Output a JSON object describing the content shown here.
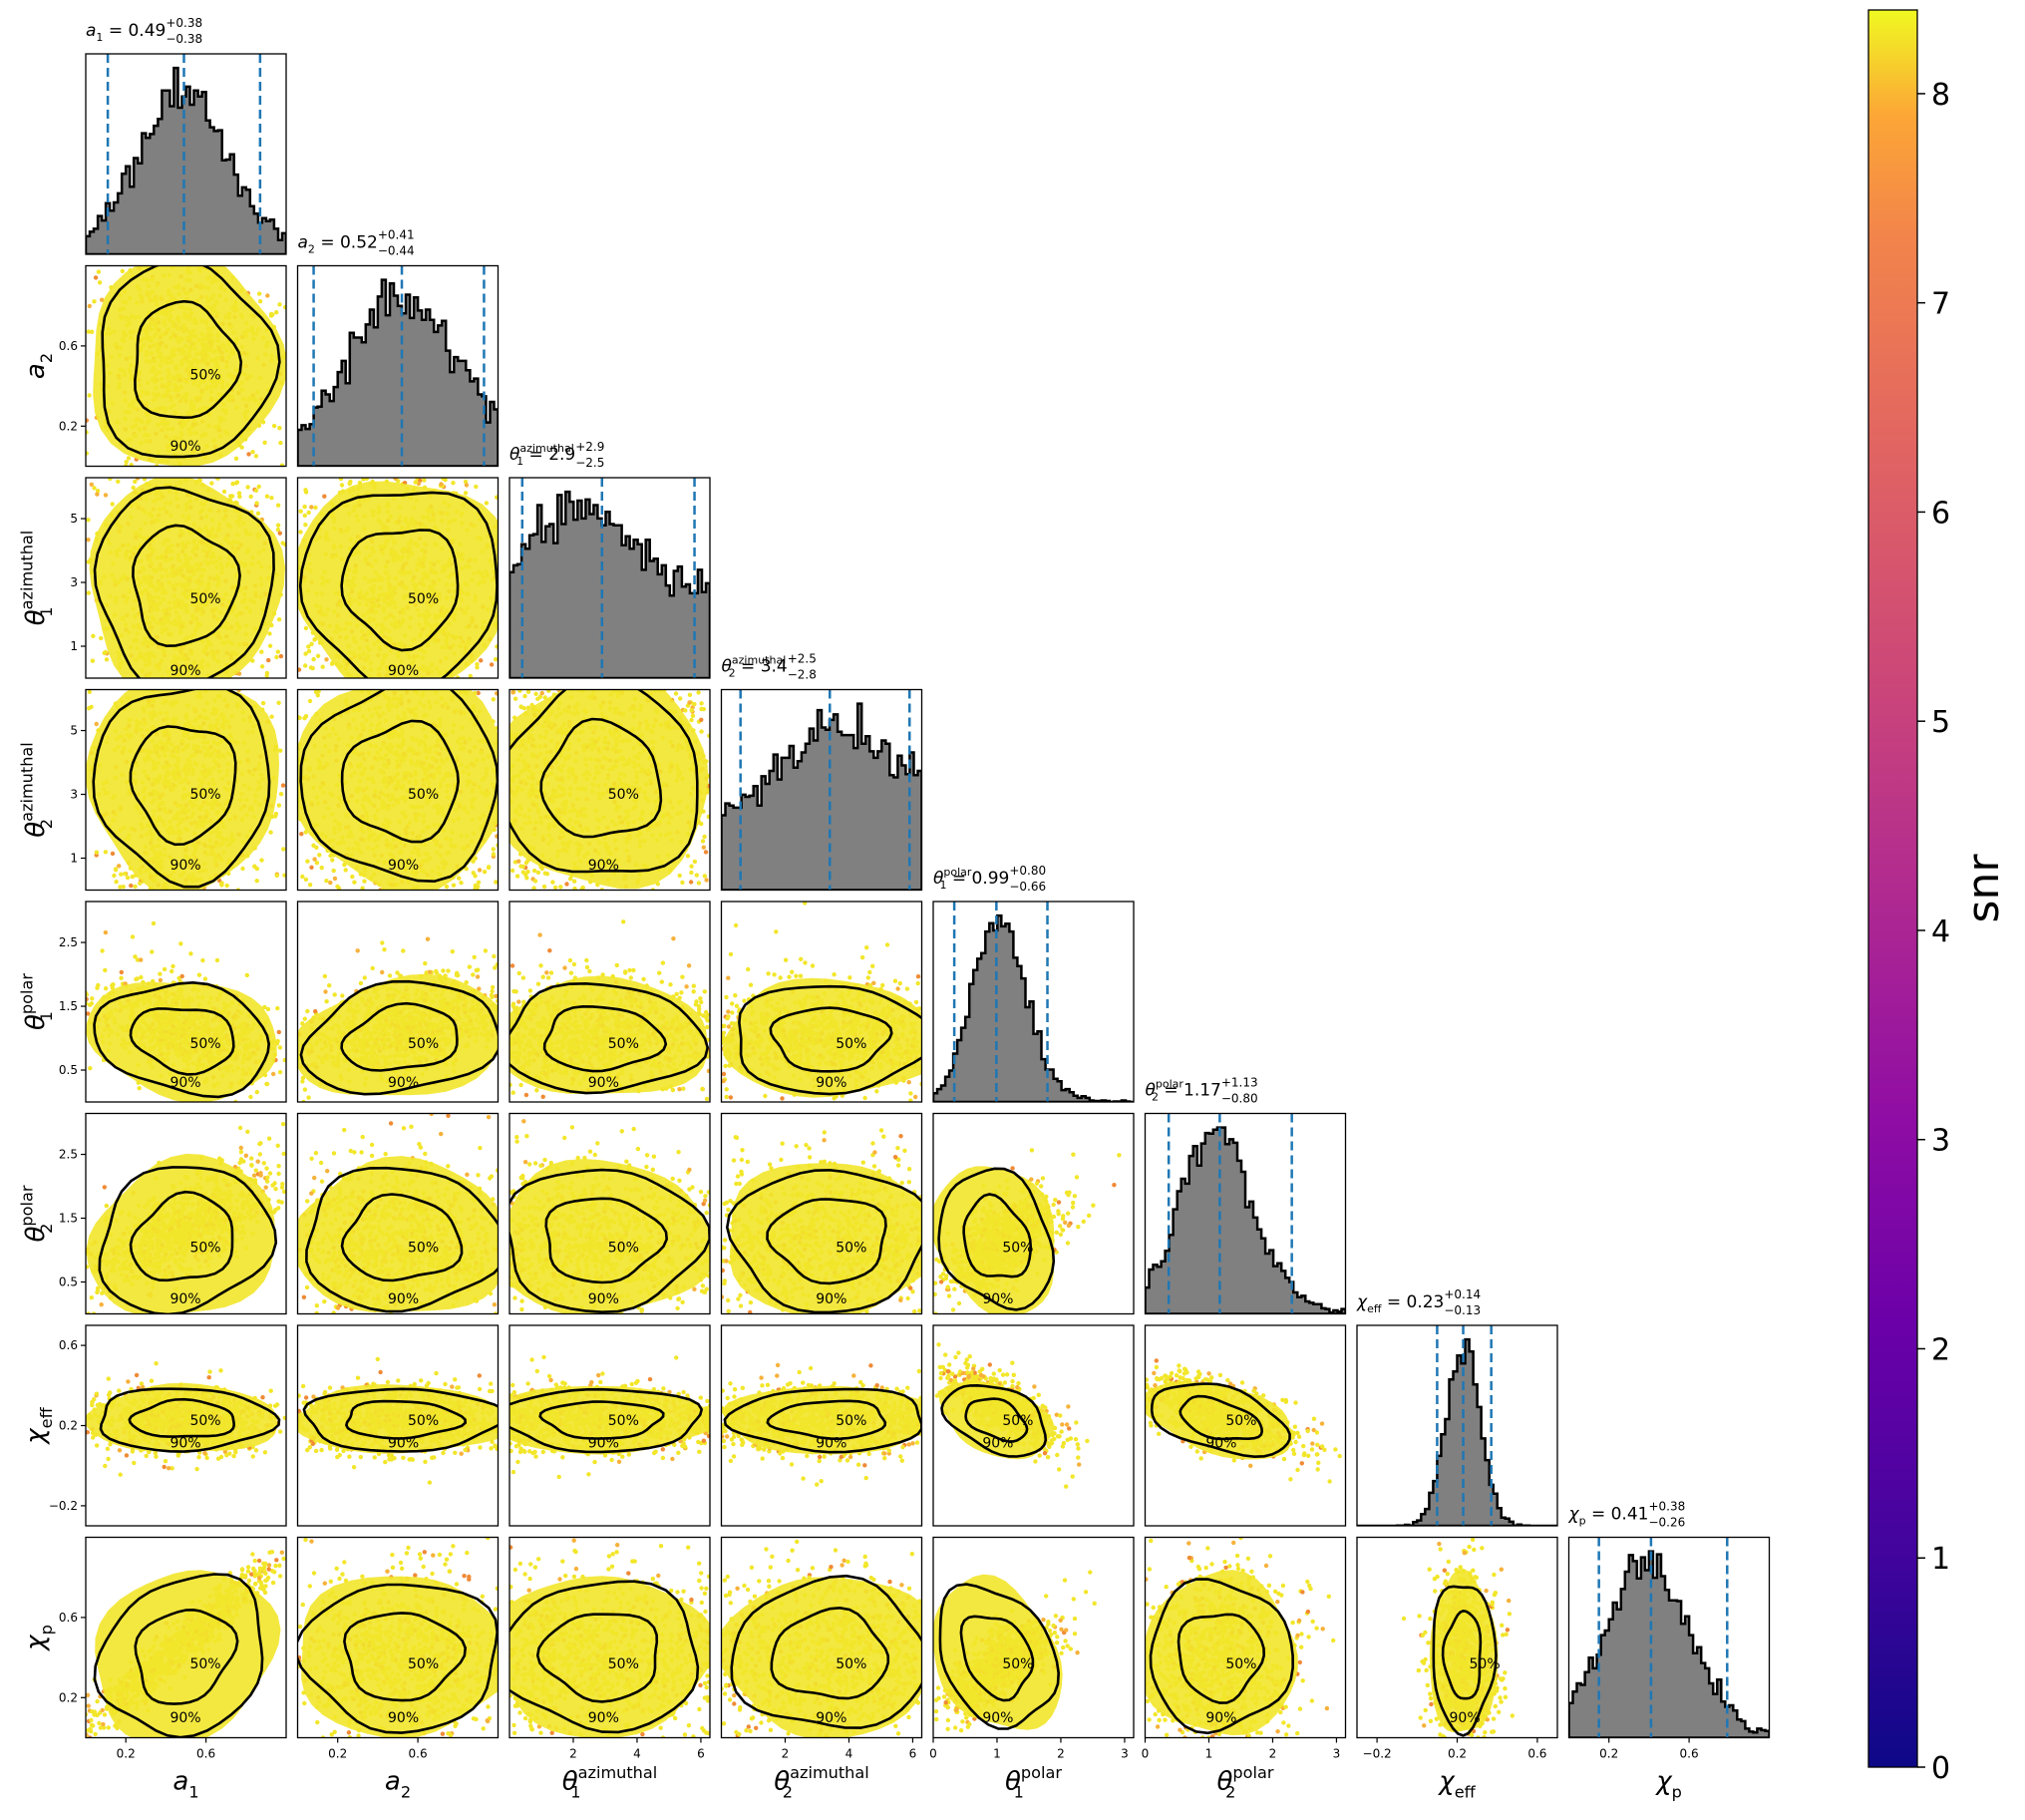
{
  "chart_data": {
    "type": "corner",
    "colors": {
      "scatter_high": "#f2e62a",
      "scatter_mid": "#f7b13a",
      "scatter_low": "#f08a35",
      "hist_fill": "#808080",
      "hist_edge": "#000000",
      "quantile_line": "#1f77b4",
      "contour": "#000000",
      "colormap": "plasma"
    },
    "parameters": [
      {
        "key": "a1",
        "base": "a",
        "sub": "1",
        "sup": "",
        "range": [
          0,
          1
        ],
        "ticks": [
          0.2,
          0.6
        ],
        "tick_labels": [
          "0.2",
          "0.6"
        ],
        "median": 0.49,
        "plus": 0.38,
        "minus": 0.38,
        "title_value": "0.49",
        "title_plus": "+0.38",
        "title_minus": "−0.38"
      },
      {
        "key": "a2",
        "base": "a",
        "sub": "2",
        "sup": "",
        "range": [
          0,
          1
        ],
        "ticks": [
          0.2,
          0.6
        ],
        "tick_labels": [
          "0.2",
          "0.6"
        ],
        "median": 0.52,
        "plus": 0.41,
        "minus": 0.44,
        "title_value": "0.52",
        "title_plus": "+0.41",
        "title_minus": "−0.44"
      },
      {
        "key": "theta1_az",
        "base": "θ",
        "sub": "1",
        "sup": "azimuthal",
        "range": [
          0,
          6.283
        ],
        "ticks": [
          1,
          3,
          5
        ],
        "tick_labels": [
          "1",
          "3",
          "5"
        ],
        "bottom_ticks": [
          2,
          4,
          6
        ],
        "bottom_tick_labels": [
          "2",
          "4",
          "6"
        ],
        "median": 2.9,
        "plus": 2.9,
        "minus": 2.5,
        "title_value": "2.9",
        "title_plus": "+2.9",
        "title_minus": "−2.5"
      },
      {
        "key": "theta2_az",
        "base": "θ",
        "sub": "2",
        "sup": "azimuthal",
        "range": [
          0,
          6.283
        ],
        "ticks": [
          1,
          3,
          5
        ],
        "tick_labels": [
          "1",
          "3",
          "5"
        ],
        "bottom_ticks": [
          2,
          4,
          6
        ],
        "bottom_tick_labels": [
          "2",
          "4",
          "6"
        ],
        "median": 3.4,
        "plus": 2.5,
        "minus": 2.8,
        "title_value": "3.4",
        "title_plus": "+2.5",
        "title_minus": "−2.8"
      },
      {
        "key": "theta1_pol",
        "base": "θ",
        "sub": "1",
        "sup": "polar",
        "range": [
          0,
          3.1416
        ],
        "ticks": [
          0.5,
          1.5,
          2.5
        ],
        "tick_labels": [
          "0.5",
          "1.5",
          "2.5"
        ],
        "bottom_ticks": [
          0,
          1,
          2,
          3
        ],
        "bottom_tick_labels": [
          "0",
          "1",
          "2",
          "3"
        ],
        "median": 0.99,
        "plus": 0.8,
        "minus": 0.66,
        "title_value": "0.99",
        "title_plus": "+0.80",
        "title_minus": "−0.66"
      },
      {
        "key": "theta2_pol",
        "base": "θ",
        "sub": "2",
        "sup": "polar",
        "range": [
          0,
          3.1416
        ],
        "ticks": [
          0.5,
          1.5,
          2.5
        ],
        "tick_labels": [
          "0.5",
          "1.5",
          "2.5"
        ],
        "bottom_ticks": [
          0,
          1,
          2,
          3
        ],
        "bottom_tick_labels": [
          "0",
          "1",
          "2",
          "3"
        ],
        "median": 1.17,
        "plus": 1.13,
        "minus": 0.8,
        "title_value": "1.17",
        "title_plus": "+1.13",
        "title_minus": "−0.80"
      },
      {
        "key": "chi_eff",
        "base": "χ",
        "sub": "eff",
        "sup": "",
        "range": [
          -0.3,
          0.7
        ],
        "ticks": [
          -0.2,
          0.2,
          0.6
        ],
        "tick_labels": [
          "−0.2",
          "0.2",
          "0.6"
        ],
        "median": 0.23,
        "plus": 0.14,
        "minus": 0.13,
        "title_value": "0.23",
        "title_plus": "+0.14",
        "title_minus": "−0.13"
      },
      {
        "key": "chi_p",
        "base": "χ",
        "sub": "p",
        "sup": "",
        "range": [
          0,
          1
        ],
        "ticks": [
          0.2,
          0.6
        ],
        "tick_labels": [
          "0.2",
          "0.6"
        ],
        "median": 0.41,
        "plus": 0.38,
        "minus": 0.26,
        "title_value": "0.41",
        "title_plus": "+0.38",
        "title_minus": "−0.26"
      }
    ],
    "contour_levels": [
      "50%",
      "90%"
    ],
    "colorbar": {
      "label": "snr",
      "min": 0,
      "max": 8.4,
      "ticks": [
        0,
        1,
        2,
        3,
        4,
        5,
        6,
        7,
        8
      ],
      "tick_labels": [
        "0",
        "1",
        "2",
        "3",
        "4",
        "5",
        "6",
        "7",
        "8"
      ]
    }
  }
}
